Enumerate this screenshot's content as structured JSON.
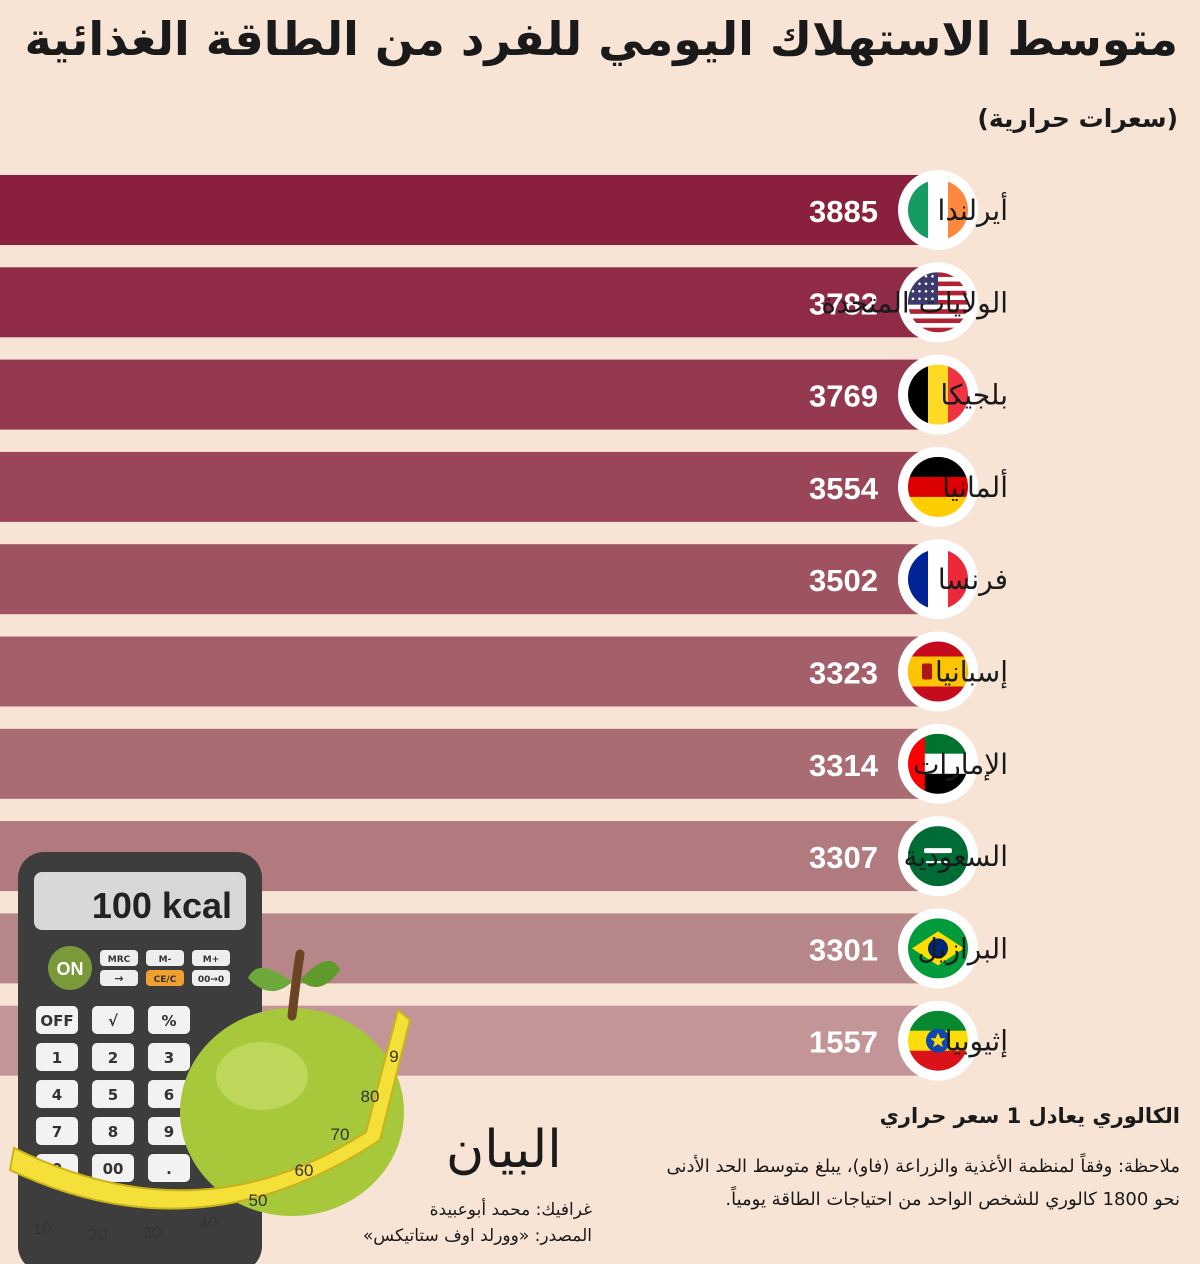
{
  "title": "متوسط الاستهلاك اليومي للفرد من الطاقة الغذائية",
  "unit_label": "(سعرات حرارية)",
  "chart_data": {
    "type": "bar",
    "orientation": "horizontal",
    "title": "متوسط الاستهلاك اليومي للفرد من الطاقة الغذائية",
    "xlabel": "",
    "ylabel": "سعرات حرارية",
    "xlim": [
      0,
      4000
    ],
    "grid": false,
    "categories": [
      "أيرلندا",
      "الولايات المتحدة",
      "بلجيكا",
      "ألمانيا",
      "فرنسا",
      "إسبانيا",
      "الإمارات",
      "السعودية",
      "البرازيل",
      "إثيوبيا"
    ],
    "values": [
      3885,
      3782,
      3769,
      3554,
      3502,
      3323,
      3314,
      3307,
      3301,
      1557
    ],
    "flags": [
      "ireland-flag-icon",
      "usa-flag-icon",
      "belgium-flag-icon",
      "germany-flag-icon",
      "france-flag-icon",
      "spain-flag-icon",
      "uae-flag-icon",
      "saudi-flag-icon",
      "brazil-flag-icon",
      "ethiopia-flag-icon"
    ],
    "colors": [
      "#8a1f3e",
      "#8f2b47",
      "#94384f",
      "#9a4658",
      "#9f5361",
      "#a4606a",
      "#a96c73",
      "#b07a7e",
      "#b68689",
      "#c49597"
    ]
  },
  "note": {
    "heading": "الكالوري يعادل 1 سعر حراري",
    "text": "ملاحظة: وفقاً لمنظمة الأغذية والزراعة (فاو)، يبلغ متوسط الحد الأدنى نحو 1800 كالوري للشخص الواحد من احتياجات الطاقة يومياً."
  },
  "logo_text": "البيان",
  "credits": {
    "graphic": "غرافيك: محمد أبوعبيدة",
    "source": "المصدر: «وورلد اوف ستاتيكس»"
  },
  "illustration": {
    "display": "100 kcal",
    "keys_row1": [
      "MRC",
      "M-",
      "M+"
    ],
    "keys_row2": [
      "→",
      "CE/C",
      "00→0"
    ],
    "on_key": "ON",
    "keys_row3": [
      "OFF",
      "√",
      "%"
    ],
    "keys_row4": [
      "1",
      "2",
      "3"
    ],
    "keys_row5": [
      "4",
      "5",
      "6"
    ],
    "keys_row6": [
      "7",
      "8",
      "9"
    ],
    "keys_row7": [
      "0",
      "00",
      "."
    ],
    "tape_numbers": [
      "10",
      "20",
      "30",
      "40",
      "50",
      "60",
      "70",
      "80",
      "9"
    ]
  }
}
